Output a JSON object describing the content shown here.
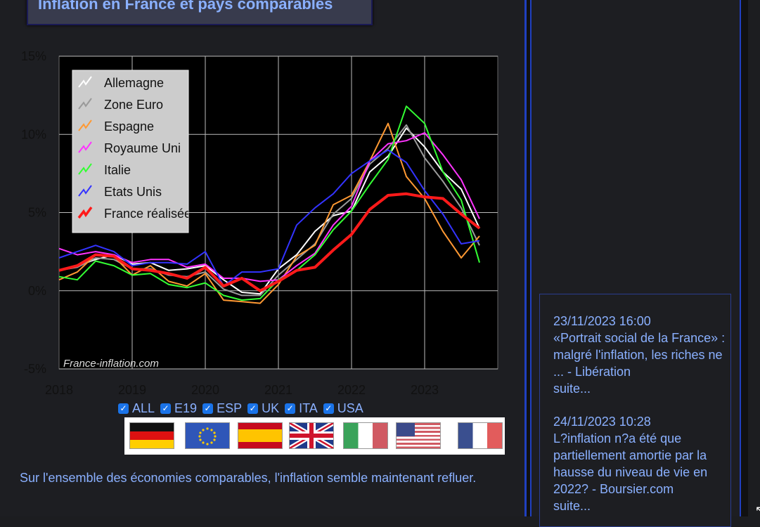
{
  "title": "Inflation en France et pays comparables",
  "watermark": "France-inflation.com",
  "checkboxes": [
    {
      "label": "ALL",
      "checked": true
    },
    {
      "label": "E19",
      "checked": true
    },
    {
      "label": "ESP",
      "checked": true
    },
    {
      "label": "UK",
      "checked": true
    },
    {
      "label": "ITA",
      "checked": true
    },
    {
      "label": "USA",
      "checked": true
    }
  ],
  "flags": [
    "germany-flag-icon",
    "eu-flag-icon",
    "spain-flag-icon",
    "uk-flag-icon",
    "italy-flag-icon",
    "usa-flag-icon",
    "france-flag-icon"
  ],
  "summary": "Sur l'ensemble des économies comparables, l'inflation semble maintenant refluer.",
  "news": [
    {
      "datetime": "23/11/2023 16:00",
      "text": "«Portrait social de la France» : malgré l'inflation, les riches ne ... - Libération",
      "more": "suite..."
    },
    {
      "datetime": "24/11/2023 10:28",
      "text": "L?inflation n?a été que partiellement amortie par la hausse du niveau de vie en 2022? - Boursier.com",
      "more": "suite..."
    }
  ],
  "chart_data": {
    "type": "line",
    "title": "Inflation en France et pays comparables",
    "xlabel": "",
    "ylabel": "",
    "xlim": [
      2018,
      2024.0
    ],
    "ylim": [
      -5,
      15
    ],
    "x_ticks": [
      "2018",
      "2019",
      "2020",
      "2021",
      "2022",
      "2023"
    ],
    "y_ticks": [
      "15%",
      "10%",
      "5%",
      "0%",
      "-5%"
    ],
    "y_tick_values": [
      15,
      10,
      5,
      0,
      -5
    ],
    "grid": true,
    "legend_position": "top-left",
    "series": [
      {
        "name": "Allemagne",
        "color": "#ffffff",
        "points": [
          [
            2018.0,
            1.3
          ],
          [
            2018.25,
            1.6
          ],
          [
            2018.5,
            2.0
          ],
          [
            2018.75,
            2.3
          ],
          [
            2019.0,
            1.7
          ],
          [
            2019.25,
            1.8
          ],
          [
            2019.5,
            1.3
          ],
          [
            2019.75,
            1.4
          ],
          [
            2020.0,
            1.6
          ],
          [
            2020.25,
            0.7
          ],
          [
            2020.5,
            -0.1
          ],
          [
            2020.75,
            -0.2
          ],
          [
            2021.0,
            1.4
          ],
          [
            2021.25,
            2.3
          ],
          [
            2021.5,
            3.8
          ],
          [
            2021.75,
            4.8
          ],
          [
            2022.0,
            5.1
          ],
          [
            2022.25,
            7.6
          ],
          [
            2022.5,
            8.6
          ],
          [
            2022.75,
            10.4
          ],
          [
            2023.0,
            9.2
          ],
          [
            2023.25,
            7.6
          ],
          [
            2023.5,
            6.5
          ],
          [
            2023.75,
            4.0
          ]
        ]
      },
      {
        "name": "Zone Euro",
        "color": "#9a9a9a",
        "points": [
          [
            2018.0,
            1.3
          ],
          [
            2018.25,
            1.5
          ],
          [
            2018.5,
            2.1
          ],
          [
            2018.75,
            2.0
          ],
          [
            2019.0,
            1.4
          ],
          [
            2019.25,
            1.4
          ],
          [
            2019.5,
            1.0
          ],
          [
            2019.75,
            0.9
          ],
          [
            2020.0,
            1.2
          ],
          [
            2020.25,
            0.1
          ],
          [
            2020.5,
            -0.3
          ],
          [
            2020.75,
            -0.3
          ],
          [
            2021.0,
            1.0
          ],
          [
            2021.25,
            2.0
          ],
          [
            2021.5,
            3.0
          ],
          [
            2021.75,
            4.9
          ],
          [
            2022.0,
            5.9
          ],
          [
            2022.25,
            8.1
          ],
          [
            2022.5,
            9.1
          ],
          [
            2022.75,
            10.6
          ],
          [
            2023.0,
            8.5
          ],
          [
            2023.25,
            7.0
          ],
          [
            2023.5,
            5.3
          ],
          [
            2023.75,
            2.9
          ]
        ]
      },
      {
        "name": "Espagne",
        "color": "#ff9933",
        "points": [
          [
            2018.0,
            0.7
          ],
          [
            2018.25,
            1.2
          ],
          [
            2018.5,
            2.3
          ],
          [
            2018.75,
            2.2
          ],
          [
            2019.0,
            1.0
          ],
          [
            2019.25,
            1.6
          ],
          [
            2019.5,
            0.6
          ],
          [
            2019.75,
            0.3
          ],
          [
            2020.0,
            1.1
          ],
          [
            2020.25,
            -0.6
          ],
          [
            2020.5,
            -0.7
          ],
          [
            2020.75,
            -0.8
          ],
          [
            2021.0,
            0.4
          ],
          [
            2021.25,
            2.2
          ],
          [
            2021.5,
            2.9
          ],
          [
            2021.75,
            5.5
          ],
          [
            2022.0,
            6.1
          ],
          [
            2022.25,
            8.3
          ],
          [
            2022.5,
            10.7
          ],
          [
            2022.75,
            7.3
          ],
          [
            2023.0,
            5.9
          ],
          [
            2023.25,
            3.8
          ],
          [
            2023.5,
            2.1
          ],
          [
            2023.75,
            3.5
          ]
        ]
      },
      {
        "name": "Royaume Uni",
        "color": "#ff33ff",
        "points": [
          [
            2018.0,
            2.7
          ],
          [
            2018.25,
            2.3
          ],
          [
            2018.5,
            2.5
          ],
          [
            2018.75,
            2.3
          ],
          [
            2019.0,
            1.8
          ],
          [
            2019.25,
            2.0
          ],
          [
            2019.5,
            2.0
          ],
          [
            2019.75,
            1.5
          ],
          [
            2020.0,
            1.7
          ],
          [
            2020.25,
            0.8
          ],
          [
            2020.5,
            0.8
          ],
          [
            2020.75,
            0.6
          ],
          [
            2021.0,
            0.7
          ],
          [
            2021.25,
            1.6
          ],
          [
            2021.5,
            2.4
          ],
          [
            2021.75,
            4.2
          ],
          [
            2022.0,
            5.4
          ],
          [
            2022.25,
            8.3
          ],
          [
            2022.5,
            9.4
          ],
          [
            2022.75,
            9.6
          ],
          [
            2023.0,
            10.1
          ],
          [
            2023.25,
            8.7
          ],
          [
            2023.5,
            7.1
          ],
          [
            2023.75,
            4.6
          ]
        ]
      },
      {
        "name": "Italie",
        "color": "#33ff33",
        "points": [
          [
            2018.0,
            0.9
          ],
          [
            2018.25,
            0.7
          ],
          [
            2018.5,
            1.9
          ],
          [
            2018.75,
            1.6
          ],
          [
            2019.0,
            1.0
          ],
          [
            2019.25,
            1.1
          ],
          [
            2019.5,
            0.4
          ],
          [
            2019.75,
            0.2
          ],
          [
            2020.0,
            0.5
          ],
          [
            2020.25,
            -0.3
          ],
          [
            2020.5,
            -0.6
          ],
          [
            2020.75,
            -0.5
          ],
          [
            2021.0,
            0.7
          ],
          [
            2021.25,
            1.3
          ],
          [
            2021.5,
            2.3
          ],
          [
            2021.75,
            3.9
          ],
          [
            2022.0,
            5.1
          ],
          [
            2022.25,
            6.8
          ],
          [
            2022.5,
            8.4
          ],
          [
            2022.75,
            11.8
          ],
          [
            2023.0,
            10.7
          ],
          [
            2023.25,
            7.6
          ],
          [
            2023.5,
            5.8
          ],
          [
            2023.75,
            1.8
          ]
        ]
      },
      {
        "name": "Etats Unis",
        "color": "#3333ff",
        "points": [
          [
            2018.0,
            2.1
          ],
          [
            2018.25,
            2.5
          ],
          [
            2018.5,
            2.9
          ],
          [
            2018.75,
            2.5
          ],
          [
            2019.0,
            1.6
          ],
          [
            2019.25,
            1.8
          ],
          [
            2019.5,
            1.8
          ],
          [
            2019.75,
            1.7
          ],
          [
            2020.0,
            2.5
          ],
          [
            2020.25,
            0.3
          ],
          [
            2020.5,
            1.2
          ],
          [
            2020.75,
            1.2
          ],
          [
            2021.0,
            1.4
          ],
          [
            2021.25,
            4.2
          ],
          [
            2021.5,
            5.3
          ],
          [
            2021.75,
            6.2
          ],
          [
            2022.0,
            7.5
          ],
          [
            2022.25,
            8.3
          ],
          [
            2022.5,
            9.0
          ],
          [
            2022.75,
            8.2
          ],
          [
            2023.0,
            6.4
          ],
          [
            2023.25,
            4.9
          ],
          [
            2023.5,
            3.0
          ],
          [
            2023.75,
            3.2
          ]
        ]
      },
      {
        "name": "France réalisée",
        "color": "#ff1a1a",
        "width": 4,
        "points": [
          [
            2018.0,
            1.3
          ],
          [
            2018.25,
            1.6
          ],
          [
            2018.5,
            2.3
          ],
          [
            2018.75,
            2.2
          ],
          [
            2019.0,
            1.4
          ],
          [
            2019.25,
            1.3
          ],
          [
            2019.5,
            1.1
          ],
          [
            2019.75,
            0.8
          ],
          [
            2020.0,
            1.5
          ],
          [
            2020.25,
            0.3
          ],
          [
            2020.5,
            0.8
          ],
          [
            2020.75,
            0.0
          ],
          [
            2021.0,
            0.6
          ],
          [
            2021.25,
            1.3
          ],
          [
            2021.5,
            1.5
          ],
          [
            2021.75,
            2.6
          ],
          [
            2022.0,
            3.6
          ],
          [
            2022.25,
            5.2
          ],
          [
            2022.5,
            6.1
          ],
          [
            2022.75,
            6.2
          ],
          [
            2023.0,
            6.0
          ],
          [
            2023.25,
            5.9
          ],
          [
            2023.5,
            4.9
          ],
          [
            2023.75,
            4.0
          ]
        ]
      }
    ]
  }
}
